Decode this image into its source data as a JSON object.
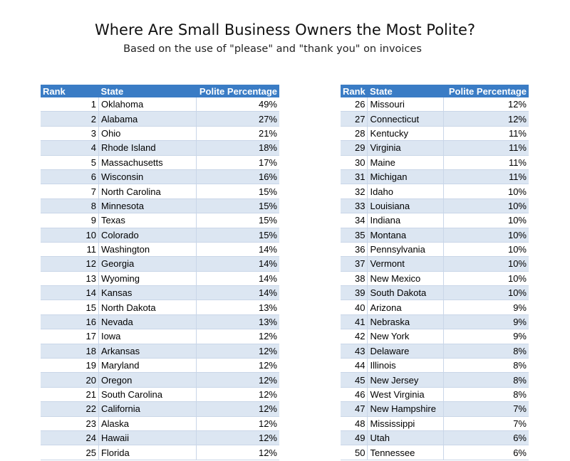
{
  "chart_data": {
    "type": "table",
    "title": "Where Are Small Business Owners the Most Polite?",
    "subtitle": "Based on the use of \"please\" and \"thank you\" on invoices",
    "columns": [
      "Rank",
      "State",
      "Polite Percentage"
    ],
    "rows": [
      [
        1,
        "Oklahoma",
        "49%"
      ],
      [
        2,
        "Alabama",
        "27%"
      ],
      [
        3,
        "Ohio",
        "21%"
      ],
      [
        4,
        "Rhode Island",
        "18%"
      ],
      [
        5,
        "Massachusetts",
        "17%"
      ],
      [
        6,
        "Wisconsin",
        "16%"
      ],
      [
        7,
        "North Carolina",
        "15%"
      ],
      [
        8,
        "Minnesota",
        "15%"
      ],
      [
        9,
        "Texas",
        "15%"
      ],
      [
        10,
        "Colorado",
        "15%"
      ],
      [
        11,
        "Washington",
        "14%"
      ],
      [
        12,
        "Georgia",
        "14%"
      ],
      [
        13,
        "Wyoming",
        "14%"
      ],
      [
        14,
        "Kansas",
        "14%"
      ],
      [
        15,
        "North Dakota",
        "13%"
      ],
      [
        16,
        "Nevada",
        "13%"
      ],
      [
        17,
        "Iowa",
        "12%"
      ],
      [
        18,
        "Arkansas",
        "12%"
      ],
      [
        19,
        "Maryland",
        "12%"
      ],
      [
        20,
        "Oregon",
        "12%"
      ],
      [
        21,
        "South Carolina",
        "12%"
      ],
      [
        22,
        "California",
        "12%"
      ],
      [
        23,
        "Alaska",
        "12%"
      ],
      [
        24,
        "Hawaii",
        "12%"
      ],
      [
        25,
        "Florida",
        "12%"
      ],
      [
        26,
        "Missouri",
        "12%"
      ],
      [
        27,
        "Connecticut",
        "12%"
      ],
      [
        28,
        "Kentucky",
        "11%"
      ],
      [
        29,
        "Virginia",
        "11%"
      ],
      [
        30,
        "Maine",
        "11%"
      ],
      [
        31,
        "Michigan",
        "11%"
      ],
      [
        32,
        "Idaho",
        "10%"
      ],
      [
        33,
        "Louisiana",
        "10%"
      ],
      [
        34,
        "Indiana",
        "10%"
      ],
      [
        35,
        "Montana",
        "10%"
      ],
      [
        36,
        "Pennsylvania",
        "10%"
      ],
      [
        37,
        "Vermont",
        "10%"
      ],
      [
        38,
        "New Mexico",
        "10%"
      ],
      [
        39,
        "South Dakota",
        "10%"
      ],
      [
        40,
        "Arizona",
        "9%"
      ],
      [
        41,
        "Nebraska",
        "9%"
      ],
      [
        42,
        "New York",
        "9%"
      ],
      [
        43,
        "Delaware",
        "8%"
      ],
      [
        44,
        "Illinois",
        "8%"
      ],
      [
        45,
        "New Jersey",
        "8%"
      ],
      [
        46,
        "West Virginia",
        "8%"
      ],
      [
        47,
        "New Hampshire",
        "7%"
      ],
      [
        48,
        "Mississippi",
        "7%"
      ],
      [
        49,
        "Utah",
        "6%"
      ],
      [
        50,
        "Tennessee",
        "6%"
      ]
    ],
    "colors": {
      "header": "#3a7cc5",
      "stripe": "#dce6f2"
    }
  }
}
